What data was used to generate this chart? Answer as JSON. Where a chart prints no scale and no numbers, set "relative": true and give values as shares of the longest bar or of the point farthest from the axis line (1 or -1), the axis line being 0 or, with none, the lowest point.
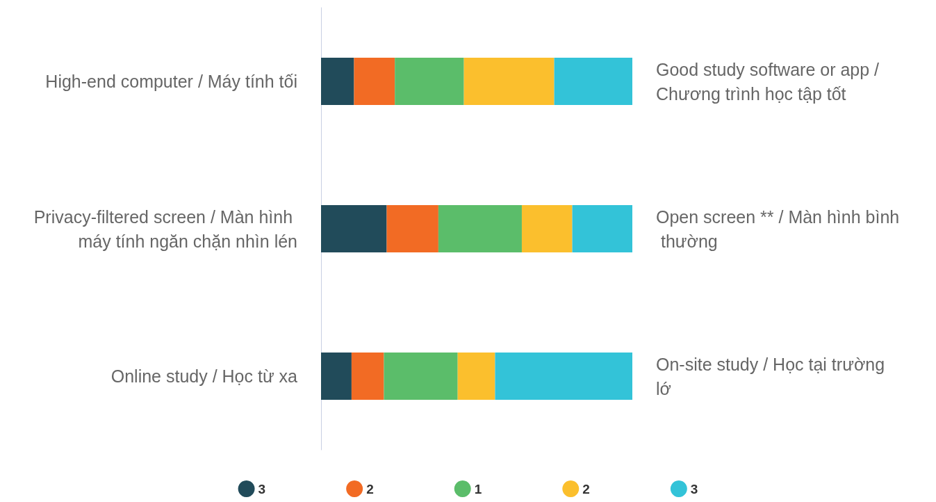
{
  "chart_data": {
    "type": "bar",
    "orientation": "horizontal",
    "stacked": true,
    "relative": true,
    "categories": [
      "High-end computer / Máy tính tối",
      "Privacy-filtered screen / Màn hình máy tính ngăn chặn nhìn lén",
      "Online study / Học từ xa"
    ],
    "y2_categories": [
      "Good study software or app / Chương trình học tập tốt",
      "Open screen ** / Màn hình bình thường",
      "On-site study / Học tại trường lớ"
    ],
    "series": [
      {
        "name": "3",
        "color": "#214b5a",
        "values": [
          0.106,
          0.211,
          0.098
        ]
      },
      {
        "name": "2",
        "color": "#f26b24",
        "values": [
          0.131,
          0.166,
          0.104
        ]
      },
      {
        "name": "1",
        "color": "#5bbd6a",
        "values": [
          0.222,
          0.268,
          0.237
        ]
      },
      {
        "name": "2",
        "color": "#fbbf2d",
        "values": [
          0.29,
          0.162,
          0.12
        ]
      },
      {
        "name": "3",
        "color": "#33c3d8",
        "values": [
          0.251,
          0.193,
          0.441
        ]
      }
    ],
    "legend": "bottom"
  }
}
